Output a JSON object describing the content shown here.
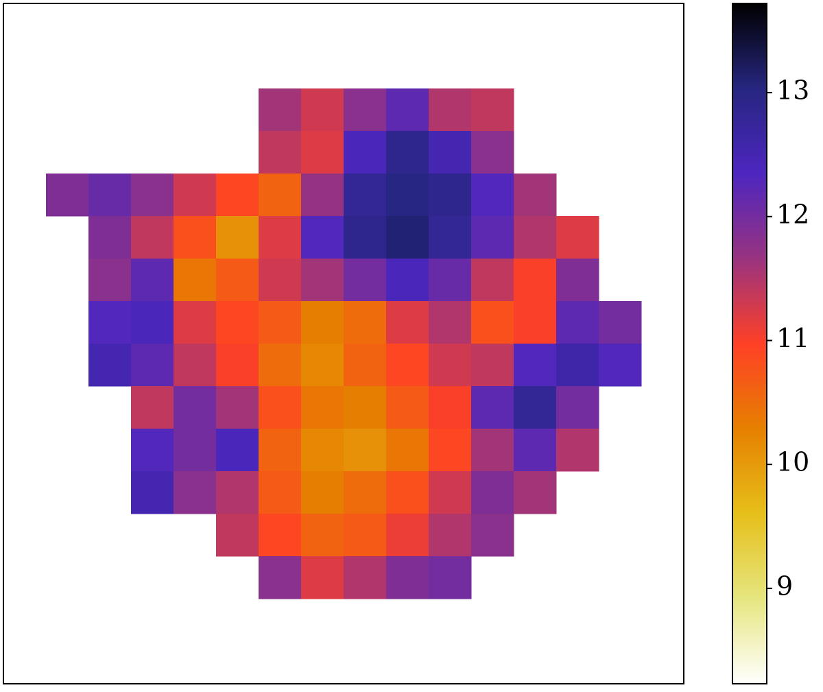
{
  "chart_data": {
    "type": "heatmap",
    "colormap": [
      "#ffffff",
      "#e6e680",
      "#e6bf1a",
      "#e68000",
      "#ff4026",
      "#993380",
      "#4d26bf",
      "#262680",
      "#000000"
    ],
    "clim": [
      8.23,
      13.72
    ],
    "cticks": [
      9,
      10,
      11,
      12,
      13
    ],
    "z": [
      [
        null,
        null,
        null,
        null,
        null,
        null,
        null,
        null,
        null,
        null,
        null,
        null,
        null,
        null,
        null,
        null
      ],
      [
        null,
        null,
        null,
        null,
        null,
        null,
        null,
        null,
        null,
        null,
        null,
        null,
        null,
        null,
        null,
        null
      ],
      [
        null,
        null,
        null,
        null,
        null,
        null,
        11.6,
        11.3,
        11.8,
        12.2,
        11.5,
        11.4,
        null,
        null,
        null,
        null
      ],
      [
        null,
        null,
        null,
        null,
        null,
        null,
        11.4,
        11.2,
        12.4,
        12.9,
        12.5,
        11.8,
        null,
        null,
        null,
        null
      ],
      [
        null,
        11.9,
        12.1,
        11.8,
        11.3,
        10.9,
        10.6,
        11.7,
        12.8,
        13.0,
        12.9,
        12.3,
        11.6,
        null,
        null,
        null
      ],
      [
        null,
        null,
        11.9,
        11.4,
        10.8,
        10.1,
        11.2,
        12.3,
        12.9,
        13.1,
        12.8,
        12.2,
        11.5,
        11.2,
        null,
        null
      ],
      [
        null,
        null,
        11.8,
        12.2,
        10.4,
        10.7,
        11.3,
        11.6,
        12.0,
        12.4,
        12.1,
        11.4,
        11.0,
        11.9,
        null,
        null
      ],
      [
        null,
        null,
        12.3,
        12.4,
        11.2,
        10.9,
        10.7,
        10.3,
        10.5,
        11.2,
        11.5,
        10.8,
        11.0,
        12.2,
        12.0,
        null
      ],
      [
        null,
        null,
        12.5,
        12.2,
        11.4,
        11.0,
        10.5,
        10.2,
        10.6,
        10.9,
        11.3,
        11.4,
        12.3,
        12.6,
        12.3,
        null
      ],
      [
        null,
        null,
        null,
        11.4,
        12.0,
        11.6,
        10.8,
        10.4,
        10.3,
        10.7,
        11.0,
        12.2,
        12.8,
        12.0,
        null,
        null
      ],
      [
        null,
        null,
        null,
        12.3,
        12.0,
        12.4,
        10.6,
        10.2,
        10.1,
        10.4,
        10.9,
        11.6,
        12.2,
        11.5,
        null,
        null
      ],
      [
        null,
        null,
        null,
        12.5,
        11.8,
        11.5,
        10.7,
        10.3,
        10.5,
        10.8,
        11.3,
        11.9,
        11.6,
        null,
        null,
        null
      ],
      [
        null,
        null,
        null,
        null,
        null,
        11.4,
        10.9,
        10.6,
        10.7,
        11.1,
        11.5,
        11.8,
        null,
        null,
        null,
        null
      ],
      [
        null,
        null,
        null,
        null,
        null,
        null,
        11.8,
        11.2,
        11.5,
        11.9,
        12.0,
        null,
        null,
        null,
        null,
        null
      ],
      [
        null,
        null,
        null,
        null,
        null,
        null,
        null,
        null,
        null,
        null,
        null,
        null,
        null,
        null,
        null,
        null
      ],
      [
        null,
        null,
        null,
        null,
        null,
        null,
        null,
        null,
        null,
        null,
        null,
        null,
        null,
        null,
        null,
        null
      ]
    ]
  }
}
